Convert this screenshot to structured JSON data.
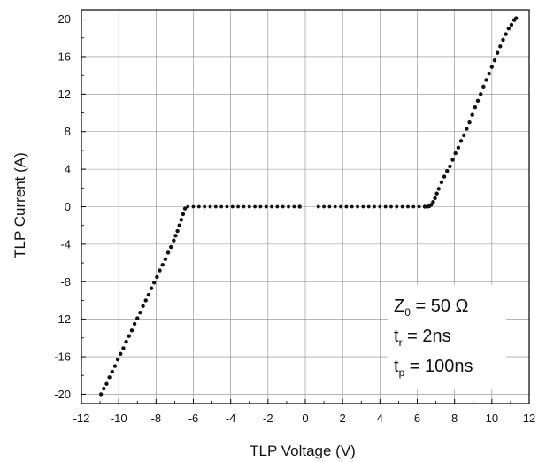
{
  "chart_data": {
    "type": "scatter",
    "title": "",
    "xlabel": "TLP Voltage (V)",
    "ylabel": "TLP Current (A)",
    "xlim": [
      -12,
      12
    ],
    "ylim": [
      -21,
      21
    ],
    "grid": true,
    "xticks": [
      "-12",
      "-10",
      "-8",
      "-6",
      "-4",
      "-2",
      "0",
      "2",
      "4",
      "6",
      "8",
      "10",
      "12"
    ],
    "yticks": [
      "-20",
      "-16",
      "-12",
      "-8",
      "-4",
      "0",
      "4",
      "8",
      "12",
      "16",
      "20"
    ],
    "series": [
      {
        "color": "#111111",
        "x": [
          -10.95,
          -10.8,
          -10.65,
          -10.5,
          -10.35,
          -10.2,
          -10.05,
          -9.9,
          -9.75,
          -9.6,
          -9.45,
          -9.3,
          -9.15,
          -9.0,
          -8.85,
          -8.7,
          -8.55,
          -8.4,
          -8.25,
          -8.1,
          -7.95,
          -7.8,
          -7.65,
          -7.5,
          -7.35,
          -7.2,
          -7.05,
          -6.95,
          -6.85,
          -6.75,
          -6.65,
          -6.55,
          -6.45,
          -6.3,
          -6.0,
          -5.7,
          -5.4,
          -5.1,
          -4.8,
          -4.5,
          -4.2,
          -3.9,
          -3.6,
          -3.3,
          -3.0,
          -2.7,
          -2.4,
          -2.1,
          -1.8,
          -1.5,
          -1.2,
          -0.9,
          -0.6,
          -0.3,
          0.7,
          1.0,
          1.3,
          1.6,
          1.9,
          2.2,
          2.5,
          2.8,
          3.1,
          3.4,
          3.7,
          4.0,
          4.3,
          4.6,
          4.9,
          5.2,
          5.5,
          5.8,
          6.1,
          6.4,
          6.55,
          6.65,
          6.75,
          6.85,
          6.95,
          7.05,
          7.15,
          7.3,
          7.45,
          7.6,
          7.75,
          7.9,
          8.05,
          8.2,
          8.35,
          8.5,
          8.65,
          8.8,
          8.95,
          9.1,
          9.25,
          9.4,
          9.55,
          9.7,
          9.85,
          10.0,
          10.15,
          10.3,
          10.45,
          10.6,
          10.75,
          10.9,
          11.05,
          11.2,
          11.3
        ],
        "y": [
          -20.0,
          -19.4,
          -18.9,
          -18.2,
          -17.6,
          -17.0,
          -16.3,
          -15.7,
          -15.1,
          -14.4,
          -13.8,
          -13.2,
          -12.5,
          -11.9,
          -11.3,
          -10.6,
          -10.0,
          -9.4,
          -8.7,
          -8.1,
          -7.5,
          -6.8,
          -6.2,
          -5.6,
          -4.9,
          -4.3,
          -3.6,
          -3.1,
          -2.6,
          -2.0,
          -1.4,
          -0.8,
          -0.2,
          0.0,
          0.0,
          0.0,
          0.0,
          0.0,
          0.0,
          0.0,
          0.0,
          0.0,
          0.0,
          0.0,
          0.0,
          0.0,
          0.0,
          0.0,
          0.0,
          0.0,
          0.0,
          0.0,
          0.0,
          0.0,
          0.0,
          0.0,
          0.0,
          0.0,
          0.0,
          0.0,
          0.0,
          0.0,
          0.0,
          0.0,
          0.0,
          0.0,
          0.0,
          0.0,
          0.0,
          0.0,
          0.0,
          0.0,
          0.0,
          0.0,
          0.0,
          0.05,
          0.2,
          0.5,
          0.9,
          1.4,
          1.9,
          2.6,
          3.2,
          3.8,
          4.3,
          5.0,
          5.7,
          6.3,
          7.0,
          7.6,
          8.3,
          9.0,
          9.8,
          10.6,
          11.3,
          12.0,
          12.8,
          13.5,
          14.2,
          14.9,
          15.6,
          16.4,
          17.1,
          17.8,
          18.4,
          19.0,
          19.4,
          19.9,
          20.1
        ]
      }
    ],
    "annotation": {
      "z_main": "Z",
      "z_sub": "0",
      "z_rest": " = 50 Ω",
      "tr_main": "t",
      "tr_sub": "r",
      "tr_rest": " = 2ns",
      "tp_main": "t",
      "tp_sub": "p",
      "tp_rest": " = 100ns"
    }
  }
}
